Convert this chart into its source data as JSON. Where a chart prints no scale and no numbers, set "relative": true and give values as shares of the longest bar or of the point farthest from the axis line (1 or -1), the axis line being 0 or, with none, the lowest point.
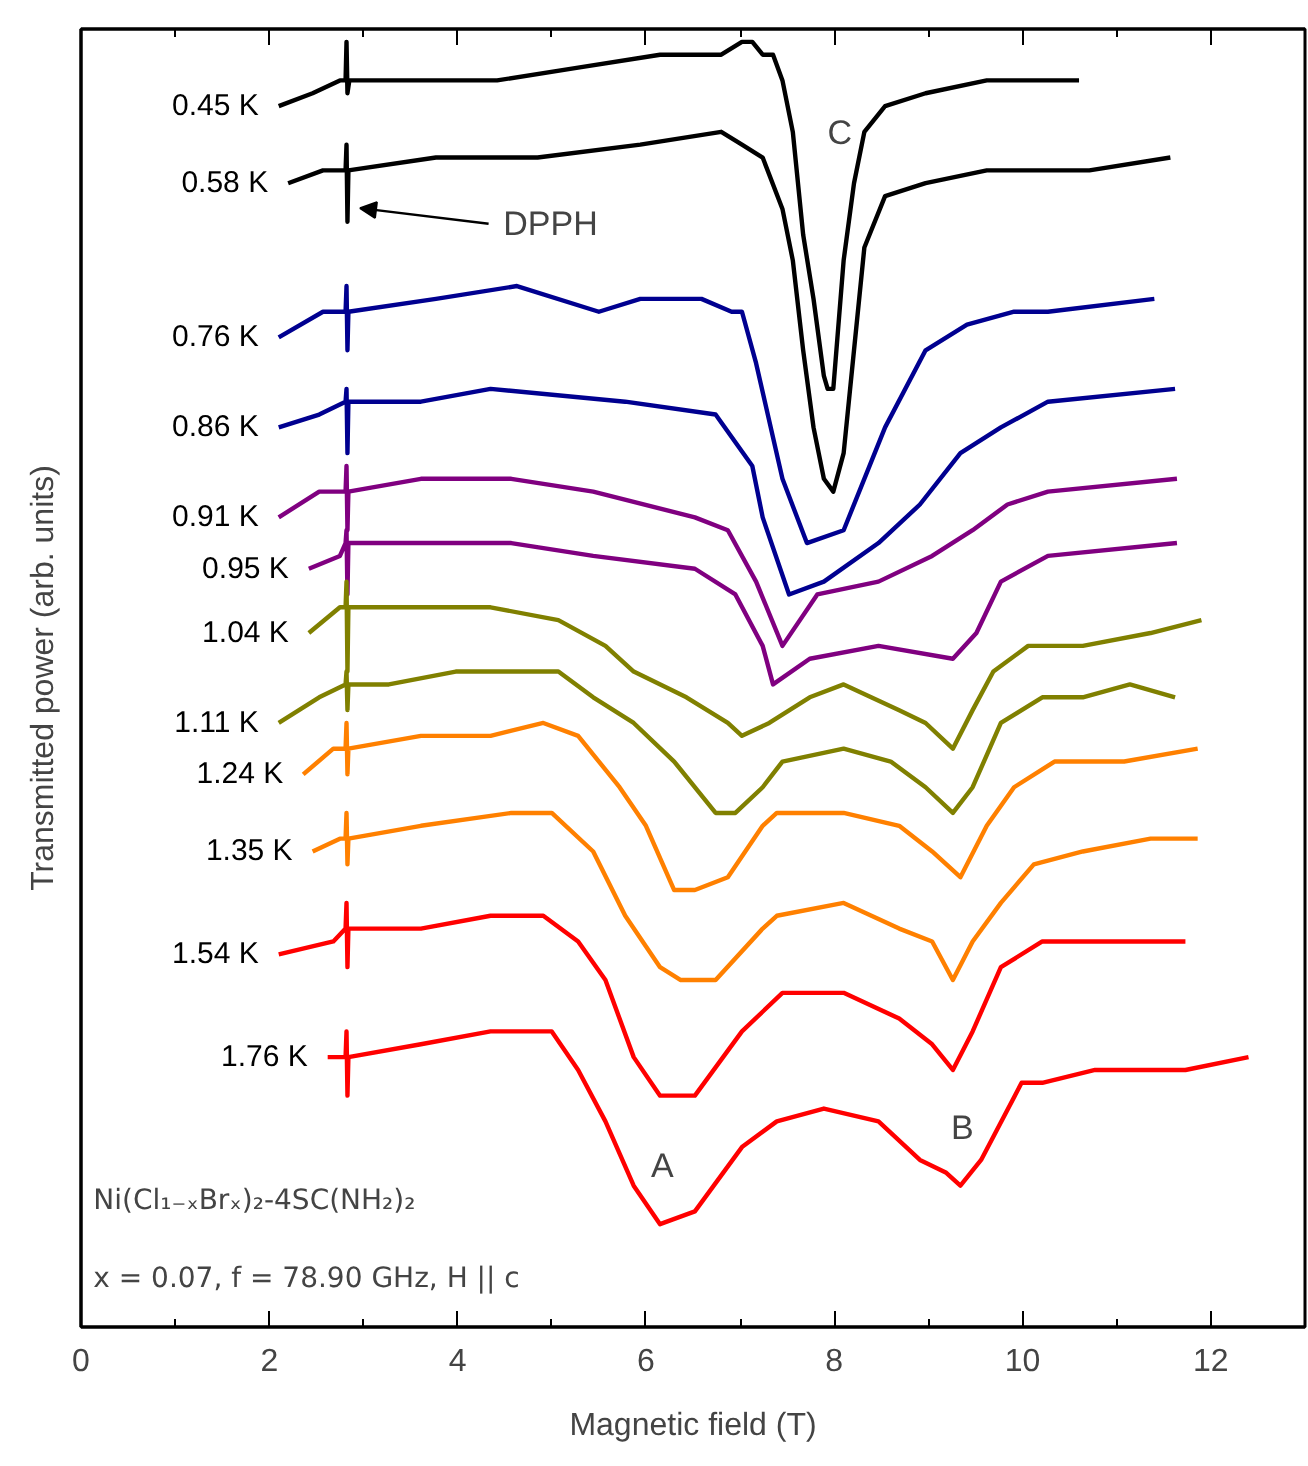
{
  "chart_data": {
    "type": "line",
    "relative": true,
    "xlabel": "Magnetic field (T)",
    "ylabel": "Transmitted power (arb. units)",
    "xlim": [
      0,
      13
    ],
    "xticks": [
      0,
      {
        "value": 1,
        "label": null
      },
      2,
      {
        "value": 3,
        "label": null
      },
      4,
      {
        "value": 5,
        "label": null
      },
      6,
      {
        "value": 7,
        "label": null
      },
      8,
      {
        "value": 9,
        "label": null
      },
      10,
      {
        "value": 11,
        "label": null
      },
      12
    ],
    "tick_labels": "x",
    "grid": false,
    "line_style": "solid",
    "marker": "none",
    "series": [
      {
        "name": "0.45 K",
        "color": "#000000",
        "x": [
          2.1,
          2.46,
          2.75,
          2.81,
          2.82,
          2.83,
          2.85,
          3.55,
          4.42,
          5.28,
          6.15,
          6.8,
          7.02,
          7.13,
          7.24,
          7.35,
          7.45,
          7.56,
          7.67,
          7.78,
          7.89,
          7.93,
          7.99,
          8.1,
          8.21,
          8.32,
          8.54,
          8.97,
          9.62,
          10.6
        ],
        "values": [
          0.95,
          0.96,
          0.97,
          0.97,
          1.0,
          0.96,
          0.97,
          0.97,
          0.97,
          0.98,
          0.99,
          0.99,
          1.0,
          1.0,
          0.99,
          0.99,
          0.97,
          0.93,
          0.85,
          0.8,
          0.74,
          0.73,
          0.73,
          0.83,
          0.89,
          0.93,
          0.95,
          0.96,
          0.97,
          0.97
        ]
      },
      {
        "name": "0.58 K",
        "color": "#000000",
        "x": [
          2.2,
          2.57,
          2.81,
          2.82,
          2.83,
          2.84,
          3.77,
          4.85,
          5.94,
          6.8,
          7.02,
          7.24,
          7.45,
          7.56,
          7.67,
          7.78,
          7.89,
          7.99,
          8.1,
          8.21,
          8.32,
          8.54,
          8.97,
          9.62,
          10.71,
          11.57
        ],
        "values": [
          0.89,
          0.9,
          0.9,
          0.92,
          0.86,
          0.9,
          0.91,
          0.91,
          0.92,
          0.93,
          0.92,
          0.91,
          0.87,
          0.83,
          0.76,
          0.7,
          0.66,
          0.65,
          0.68,
          0.76,
          0.84,
          0.88,
          0.89,
          0.9,
          0.9,
          0.91
        ]
      },
      {
        "name": "0.76 K",
        "color": "#000090",
        "x": [
          2.1,
          2.57,
          2.81,
          2.82,
          2.83,
          2.84,
          3.77,
          4.63,
          5.5,
          5.94,
          6.59,
          6.91,
          7.02,
          7.17,
          7.45,
          7.71,
          8.1,
          8.54,
          8.97,
          9.41,
          9.91,
          10.27,
          11.4
        ],
        "values": [
          0.77,
          0.79,
          0.79,
          0.81,
          0.76,
          0.79,
          0.8,
          0.81,
          0.79,
          0.8,
          0.8,
          0.79,
          0.79,
          0.75,
          0.66,
          0.61,
          0.62,
          0.7,
          0.76,
          0.78,
          0.79,
          0.79,
          0.8
        ]
      },
      {
        "name": "0.86 K",
        "color": "#000090",
        "x": [
          2.1,
          2.53,
          2.81,
          2.82,
          2.83,
          2.84,
          3.61,
          4.35,
          5.78,
          6.74,
          7.13,
          7.24,
          7.52,
          7.89,
          8.47,
          8.91,
          9.34,
          9.77,
          10.27,
          11.62
        ],
        "values": [
          0.7,
          0.71,
          0.72,
          0.73,
          0.68,
          0.72,
          0.72,
          0.73,
          0.72,
          0.71,
          0.67,
          0.63,
          0.57,
          0.58,
          0.61,
          0.64,
          0.68,
          0.7,
          0.72,
          0.73
        ]
      },
      {
        "name": "0.91 K",
        "color": "#800080",
        "x": [
          2.1,
          2.53,
          2.81,
          2.82,
          2.83,
          2.84,
          3.61,
          4.57,
          5.44,
          6.52,
          6.87,
          7.17,
          7.45,
          7.82,
          8.47,
          9.04,
          9.47,
          9.84,
          10.27,
          11.64
        ],
        "values": [
          0.63,
          0.65,
          0.65,
          0.67,
          0.62,
          0.65,
          0.66,
          0.66,
          0.65,
          0.63,
          0.62,
          0.58,
          0.53,
          0.57,
          0.58,
          0.6,
          0.62,
          0.64,
          0.65,
          0.66
        ]
      },
      {
        "name": "0.95 K",
        "color": "#800080",
        "x": [
          2.42,
          2.75,
          2.81,
          2.82,
          2.83,
          2.84,
          3.61,
          4.57,
          5.44,
          6.52,
          6.95,
          7.24,
          7.35,
          7.74,
          8.47,
          9.26,
          9.51,
          9.77,
          10.27,
          11.64
        ],
        "values": [
          0.59,
          0.6,
          0.61,
          0.62,
          0.57,
          0.61,
          0.61,
          0.61,
          0.6,
          0.59,
          0.57,
          0.53,
          0.5,
          0.52,
          0.53,
          0.52,
          0.54,
          0.58,
          0.6,
          0.61
        ]
      },
      {
        "name": "1.04 K",
        "color": "#808000",
        "x": [
          2.42,
          2.75,
          2.81,
          2.82,
          2.83,
          2.84,
          3.61,
          4.35,
          5.07,
          5.57,
          5.87,
          6.43,
          6.87,
          7.02,
          7.31,
          7.74,
          8.1,
          8.69,
          8.97,
          9.26,
          9.47,
          9.69,
          10.06,
          10.64,
          11.36,
          11.9
        ],
        "values": [
          0.54,
          0.56,
          0.56,
          0.58,
          0.51,
          0.56,
          0.56,
          0.56,
          0.55,
          0.53,
          0.51,
          0.49,
          0.47,
          0.46,
          0.47,
          0.49,
          0.5,
          0.48,
          0.47,
          0.45,
          0.48,
          0.51,
          0.53,
          0.53,
          0.54,
          0.55
        ]
      },
      {
        "name": "1.11 K",
        "color": "#808000",
        "x": [
          2.1,
          2.53,
          2.81,
          2.82,
          2.83,
          2.84,
          3.27,
          3.98,
          4.7,
          5.07,
          5.44,
          5.87,
          6.3,
          6.74,
          6.95,
          7.24,
          7.45,
          8.1,
          8.6,
          8.97,
          9.26,
          9.47,
          9.77,
          10.21,
          10.64,
          11.14,
          11.62
        ],
        "values": [
          0.47,
          0.49,
          0.5,
          0.51,
          0.48,
          0.5,
          0.5,
          0.51,
          0.51,
          0.51,
          0.49,
          0.47,
          0.44,
          0.4,
          0.4,
          0.42,
          0.44,
          0.45,
          0.44,
          0.42,
          0.4,
          0.42,
          0.47,
          0.49,
          0.49,
          0.5,
          0.49
        ]
      },
      {
        "name": "1.24 K",
        "color": "#ff8000",
        "x": [
          2.36,
          2.68,
          2.81,
          2.82,
          2.83,
          2.84,
          3.61,
          4.35,
          4.91,
          5.28,
          5.72,
          6.0,
          6.3,
          6.52,
          6.87,
          7.24,
          7.39,
          8.1,
          8.69,
          9.04,
          9.34,
          9.62,
          9.91,
          10.34,
          11.08,
          11.86
        ],
        "values": [
          0.43,
          0.45,
          0.45,
          0.47,
          0.43,
          0.45,
          0.46,
          0.46,
          0.47,
          0.46,
          0.42,
          0.39,
          0.34,
          0.34,
          0.35,
          0.39,
          0.4,
          0.4,
          0.39,
          0.37,
          0.35,
          0.39,
          0.42,
          0.44,
          0.44,
          0.45
        ]
      },
      {
        "name": "1.35 K",
        "color": "#ff8000",
        "x": [
          2.46,
          2.75,
          2.81,
          2.82,
          2.83,
          2.84,
          3.61,
          4.57,
          5.0,
          5.44,
          5.78,
          6.15,
          6.37,
          6.74,
          7.24,
          7.39,
          8.1,
          8.69,
          9.04,
          9.26,
          9.47,
          9.77,
          10.12,
          10.64,
          11.36,
          11.86
        ],
        "values": [
          0.37,
          0.38,
          0.38,
          0.4,
          0.36,
          0.38,
          0.39,
          0.4,
          0.4,
          0.37,
          0.32,
          0.28,
          0.27,
          0.27,
          0.31,
          0.32,
          0.33,
          0.31,
          0.3,
          0.27,
          0.3,
          0.33,
          0.36,
          0.37,
          0.38,
          0.38
        ]
      },
      {
        "name": "1.54 K",
        "color": "#ff0000",
        "x": [
          2.1,
          2.68,
          2.81,
          2.82,
          2.83,
          2.84,
          3.61,
          4.35,
          4.91,
          5.28,
          5.57,
          5.87,
          6.15,
          6.52,
          7.02,
          7.45,
          8.1,
          8.69,
          9.04,
          9.26,
          9.47,
          9.77,
          10.21,
          10.77,
          11.73
        ],
        "values": [
          0.29,
          0.3,
          0.31,
          0.33,
          0.28,
          0.31,
          0.31,
          0.32,
          0.32,
          0.3,
          0.27,
          0.21,
          0.18,
          0.18,
          0.23,
          0.26,
          0.26,
          0.24,
          0.22,
          0.2,
          0.23,
          0.28,
          0.3,
          0.3,
          0.3
        ]
      },
      {
        "name": "1.76 K",
        "color": "#ff0000",
        "x": [
          2.62,
          2.81,
          2.82,
          2.83,
          2.84,
          3.61,
          4.35,
          5.0,
          5.28,
          5.57,
          5.87,
          6.15,
          6.52,
          7.02,
          7.39,
          7.89,
          8.47,
          8.91,
          9.19,
          9.34,
          9.56,
          9.99,
          10.21,
          10.77,
          11.73,
          12.4
        ],
        "values": [
          0.21,
          0.21,
          0.23,
          0.18,
          0.21,
          0.22,
          0.23,
          0.23,
          0.2,
          0.16,
          0.11,
          0.08,
          0.09,
          0.14,
          0.16,
          0.17,
          0.16,
          0.13,
          0.12,
          0.11,
          0.13,
          0.19,
          0.19,
          0.2,
          0.2,
          0.21
        ]
      }
    ],
    "annotations": [
      "C",
      "DPPH",
      "A",
      "B",
      "Ni(Cl₁₋ₓBrₓ)₂-4SC(NH₂)₂",
      "x = 0.07, f = 78.90 GHz, H || c"
    ]
  }
}
